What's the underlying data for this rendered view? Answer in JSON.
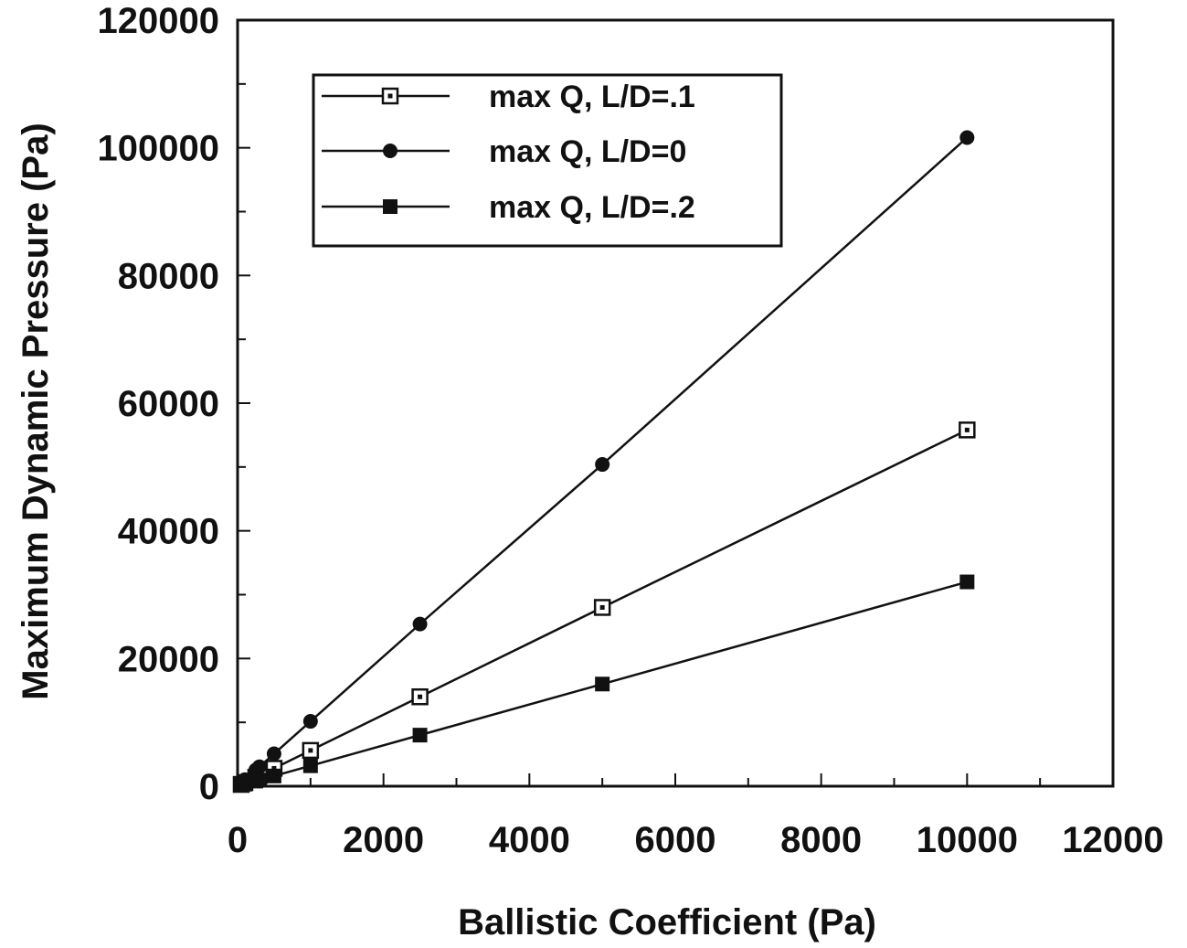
{
  "chart_data": {
    "type": "line",
    "title": "",
    "xlabel": "Ballistic  Coefficient  (Pa)",
    "ylabel": "Maximum  Dynamic  Pressure  (Pa)",
    "xlim": [
      0,
      12000
    ],
    "ylim": [
      0,
      120000
    ],
    "xticks": [
      0,
      2000,
      4000,
      6000,
      8000,
      10000,
      12000
    ],
    "yticks": [
      0,
      20000,
      40000,
      60000,
      80000,
      100000,
      120000
    ],
    "xtick_labels": [
      "0",
      "2000",
      "4000",
      "6000",
      "8000",
      "10000",
      "12000"
    ],
    "ytick_labels": [
      "0",
      "20000",
      "40000",
      "60000",
      "80000",
      "100000",
      "120000"
    ],
    "grid": false,
    "legend_position": "top-left",
    "x": [
      50,
      100,
      250,
      300,
      500,
      1000,
      2500,
      5000,
      10000
    ],
    "series": [
      {
        "name": "max Q, L/D=.1",
        "marker": "open-square",
        "values": [
          280,
          560,
          1400,
          1680,
          2800,
          5600,
          14000,
          28000,
          55800
        ]
      },
      {
        "name": "max Q, L/D=0",
        "marker": "diamond",
        "values": [
          510,
          1020,
          2540,
          3050,
          5080,
          10160,
          25400,
          50400,
          101600
        ]
      },
      {
        "name": "max Q, L/D=.2",
        "marker": "filled-square",
        "values": [
          160,
          320,
          800,
          960,
          1600,
          3200,
          8000,
          16000,
          32000
        ]
      }
    ],
    "colors": {
      "line": "#111111",
      "background": "#ffffff"
    }
  }
}
